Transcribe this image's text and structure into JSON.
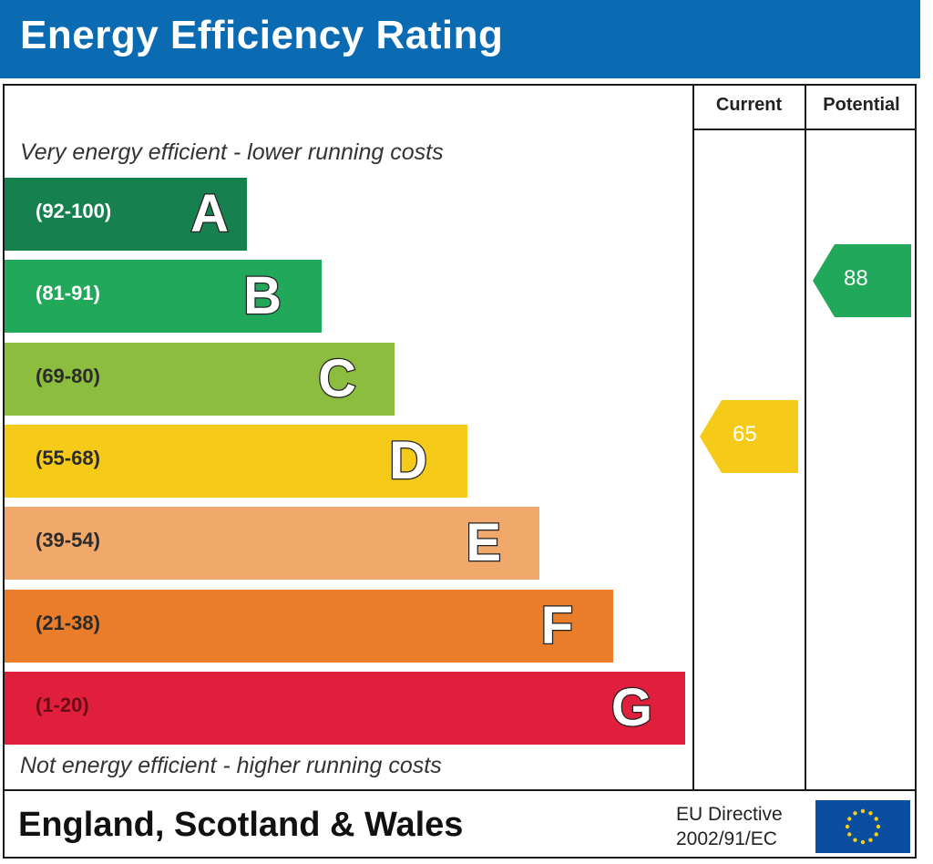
{
  "title": "Energy Efficiency Rating",
  "columns": {
    "current": "Current",
    "potential": "Potential"
  },
  "captions": {
    "top": "Very energy efficient - lower running costs",
    "bottom": "Not energy efficient - higher running costs"
  },
  "chart_data": {
    "type": "bar",
    "bands": [
      {
        "letter": "A",
        "range": "(92-100)",
        "min": 92,
        "max": 100,
        "color": "#16804f"
      },
      {
        "letter": "B",
        "range": "(81-91)",
        "min": 81,
        "max": 91,
        "color": "#22a85a"
      },
      {
        "letter": "C",
        "range": "(69-80)",
        "min": 69,
        "max": 80,
        "color": "#8dbd3f"
      },
      {
        "letter": "D",
        "range": "(55-68)",
        "min": 55,
        "max": 68,
        "color": "#f5ca18"
      },
      {
        "letter": "E",
        "range": "(39-54)",
        "min": 39,
        "max": 54,
        "color": "#f0a96a"
      },
      {
        "letter": "F",
        "range": "(21-38)",
        "min": 21,
        "max": 38,
        "color": "#ea7d2a"
      },
      {
        "letter": "G",
        "range": "(1-20)",
        "min": 1,
        "max": 20,
        "color": "#df1f3b"
      }
    ],
    "current": {
      "value": 65,
      "band": "D",
      "label": "65"
    },
    "potential": {
      "value": 88,
      "band": "B",
      "label": "88"
    }
  },
  "footer": {
    "region": "England, Scotland & Wales",
    "directive_line1": "EU Directive",
    "directive_line2": "2002/91/EC"
  },
  "colors": {
    "header_bg": "#0a6bb2",
    "eu_flag_bg": "#0b4d9e",
    "eu_star": "#f7d117"
  },
  "icons": {
    "flag": "eu-flag-icon"
  }
}
